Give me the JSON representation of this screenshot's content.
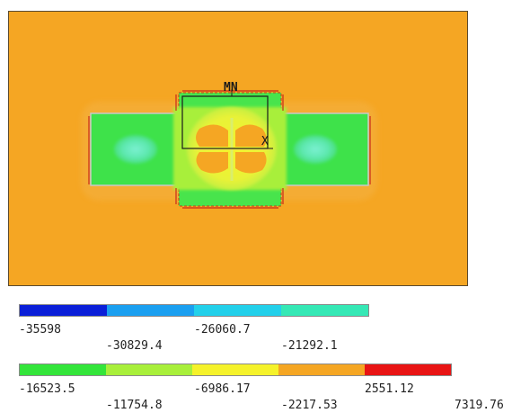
{
  "colors": {
    "background": "#f5a623",
    "frame_border": "#5a4a30"
  },
  "plot": {
    "axis_label_top": "MN",
    "axis_label_right": "X"
  },
  "legend": {
    "row1": [
      {
        "color": "#0a1fd8",
        "value": "-35598"
      },
      {
        "color": "#1a9ff0",
        "value": "-30829.4"
      },
      {
        "color": "#22d0ea",
        "value": "-26060.7"
      },
      {
        "color": "#35e8b5",
        "value": "-21292.1"
      }
    ],
    "row2": [
      {
        "color": "#33e53a",
        "value": "-16523.5"
      },
      {
        "color": "#a8ef3a",
        "value": "-11754.8"
      },
      {
        "color": "#f5f22a",
        "value": "-6986.17"
      },
      {
        "color": "#f5a623",
        "value": "-2217.53"
      },
      {
        "color": "#e81414",
        "value": "2551.12"
      }
    ],
    "max_value": "7319.76"
  }
}
